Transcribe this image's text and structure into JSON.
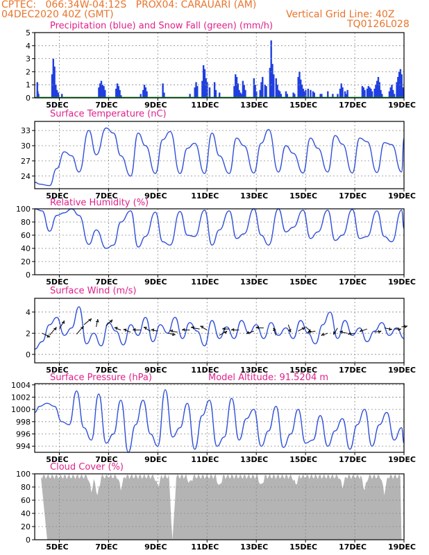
{
  "header": {
    "line1_left": "CPTEC:   066:34W-04:12S   PROX04: CARAUARI (AM)",
    "line2_left": "04DEC2020 40Z (GMT)",
    "line2_right": "Vertical Grid Line: 40Z",
    "line3_right": "TQ0126L028"
  },
  "colors": {
    "header_text": "#e8742c",
    "panel_title": "#e0208a",
    "precip": "#1f3fe0",
    "snow": "#1a9a2a",
    "line": "#3050d8",
    "cloud": "#b4b4b4",
    "grid": "#888888"
  },
  "x_axis": {
    "ticks": [
      "5DEC",
      "7DEC",
      "9DEC",
      "11DEC",
      "13DEC",
      "15DEC",
      "17DEC",
      "19DEC"
    ]
  },
  "chart_data": [
    {
      "id": "precip",
      "type": "bar",
      "title": "Precipitation (blue) and Snow Fall (green) (mm/h)",
      "ylim": [
        0,
        5
      ],
      "yticks": [
        "0",
        "1",
        "2",
        "3",
        "4",
        "5"
      ],
      "x_start_day": 4.0,
      "x_end_day": 19.0,
      "bars": [
        [
          4.1,
          1.2
        ],
        [
          4.12,
          0.5
        ],
        [
          4.15,
          0.3
        ],
        [
          4.7,
          1.8
        ],
        [
          4.75,
          3.0
        ],
        [
          4.8,
          2.4
        ],
        [
          4.85,
          1.0
        ],
        [
          4.9,
          0.6
        ],
        [
          4.95,
          0.4
        ],
        [
          5.1,
          0.3
        ],
        [
          6.6,
          0.8
        ],
        [
          6.65,
          1.1
        ],
        [
          6.7,
          1.3
        ],
        [
          6.75,
          1.0
        ],
        [
          6.8,
          0.9
        ],
        [
          6.85,
          0.6
        ],
        [
          7.3,
          0.7
        ],
        [
          7.35,
          1.1
        ],
        [
          7.4,
          0.9
        ],
        [
          7.45,
          0.6
        ],
        [
          7.5,
          0.2
        ],
        [
          8.3,
          0.3
        ],
        [
          8.4,
          0.6
        ],
        [
          8.45,
          1.0
        ],
        [
          8.5,
          0.8
        ],
        [
          8.55,
          0.5
        ],
        [
          9.2,
          1.1
        ],
        [
          9.25,
          0.4
        ],
        [
          10.3,
          0.3
        ],
        [
          10.5,
          0.8
        ],
        [
          10.55,
          1.2
        ],
        [
          10.6,
          0.9
        ],
        [
          10.8,
          1.3
        ],
        [
          10.85,
          2.5
        ],
        [
          10.9,
          2.2
        ],
        [
          10.95,
          1.5
        ],
        [
          11.0,
          1.2
        ],
        [
          11.1,
          0.8
        ],
        [
          11.3,
          1.2
        ],
        [
          11.35,
          0.6
        ],
        [
          11.5,
          0.4
        ],
        [
          12.1,
          0.9
        ],
        [
          12.15,
          1.8
        ],
        [
          12.2,
          1.6
        ],
        [
          12.25,
          1.1
        ],
        [
          12.3,
          0.6
        ],
        [
          12.35,
          0.4
        ],
        [
          12.4,
          0.3
        ],
        [
          12.45,
          1.3
        ],
        [
          12.5,
          1.0
        ],
        [
          12.55,
          0.6
        ],
        [
          12.9,
          1.5
        ],
        [
          12.95,
          1.0
        ],
        [
          13.0,
          0.5
        ],
        [
          13.15,
          0.6
        ],
        [
          13.2,
          1.2
        ],
        [
          13.25,
          1.6
        ],
        [
          13.35,
          1.0
        ],
        [
          13.4,
          0.9
        ],
        [
          13.55,
          2.3
        ],
        [
          13.6,
          4.4
        ],
        [
          13.65,
          2.6
        ],
        [
          13.7,
          1.8
        ],
        [
          13.8,
          1.5
        ],
        [
          13.85,
          1.0
        ],
        [
          13.9,
          0.6
        ],
        [
          13.95,
          0.5
        ],
        [
          14.0,
          0.3
        ],
        [
          14.2,
          0.5
        ],
        [
          14.25,
          0.3
        ],
        [
          14.5,
          0.4
        ],
        [
          14.55,
          0.3
        ],
        [
          14.7,
          1.6
        ],
        [
          14.75,
          2.0
        ],
        [
          14.8,
          1.4
        ],
        [
          14.85,
          1.0
        ],
        [
          14.9,
          0.7
        ],
        [
          14.95,
          0.5
        ],
        [
          15.0,
          0.6
        ],
        [
          15.1,
          0.7
        ],
        [
          15.2,
          0.6
        ],
        [
          15.3,
          0.5
        ],
        [
          15.35,
          0.4
        ],
        [
          15.6,
          0.3
        ],
        [
          15.65,
          0.3
        ],
        [
          15.9,
          0.5
        ],
        [
          16.1,
          0.3
        ],
        [
          16.3,
          0.3
        ],
        [
          16.4,
          0.7
        ],
        [
          16.45,
          1.1
        ],
        [
          16.5,
          0.8
        ],
        [
          16.6,
          0.5
        ],
        [
          16.65,
          0.3
        ],
        [
          16.7,
          0.6
        ],
        [
          17.3,
          0.9
        ],
        [
          17.35,
          0.8
        ],
        [
          17.4,
          0.6
        ],
        [
          17.5,
          0.7
        ],
        [
          17.55,
          0.9
        ],
        [
          17.6,
          0.8
        ],
        [
          17.65,
          0.7
        ],
        [
          17.7,
          0.5
        ],
        [
          17.8,
          0.7
        ],
        [
          17.85,
          1.0
        ],
        [
          17.9,
          1.3
        ],
        [
          17.95,
          1.6
        ],
        [
          18.0,
          1.2
        ],
        [
          18.05,
          0.6
        ],
        [
          18.1,
          0.3
        ],
        [
          18.4,
          0.5
        ],
        [
          18.45,
          0.8
        ],
        [
          18.5,
          1.0
        ],
        [
          18.55,
          0.6
        ],
        [
          18.6,
          0.3
        ],
        [
          18.7,
          1.2
        ],
        [
          18.75,
          1.6
        ],
        [
          18.8,
          2.0
        ],
        [
          18.85,
          2.2
        ],
        [
          18.9,
          1.8
        ],
        [
          18.95,
          0.8
        ]
      ],
      "snow_line_value": 0.02
    },
    {
      "id": "temperature",
      "type": "line",
      "title": "Surface Temperature (nC)",
      "ylim": [
        21.5,
        34.8
      ],
      "yticks": [
        "24",
        "27",
        "30",
        "33"
      ],
      "ytick_values": [
        24,
        27,
        30,
        33
      ],
      "x": [
        4.0,
        4.2,
        4.6,
        4.9,
        5.2,
        5.5,
        5.8,
        6.2,
        6.5,
        6.9,
        7.2,
        7.5,
        7.9,
        8.2,
        8.5,
        8.9,
        9.2,
        9.5,
        9.9,
        10.2,
        10.5,
        10.9,
        11.2,
        11.5,
        11.9,
        12.2,
        12.5,
        12.9,
        13.2,
        13.5,
        13.9,
        14.2,
        14.5,
        14.9,
        15.2,
        15.5,
        15.9,
        16.2,
        16.5,
        16.9,
        17.2,
        17.5,
        17.9,
        18.2,
        18.5,
        18.9,
        19.0
      ],
      "y": [
        22.8,
        22.4,
        22.1,
        25.5,
        28.8,
        28.0,
        24.8,
        33.0,
        28.2,
        33.5,
        32.5,
        28.0,
        24.0,
        32.5,
        30.0,
        24.5,
        31.2,
        32.8,
        24.5,
        29.5,
        30.5,
        24.5,
        32.5,
        28.0,
        24.5,
        31.5,
        30.0,
        24.6,
        30.5,
        33.2,
        24.8,
        30.0,
        28.5,
        24.6,
        31.5,
        29.5,
        24.8,
        32.0,
        30.3,
        24.6,
        31.5,
        30.8,
        24.7,
        30.6,
        30.2,
        24.8,
        31.5
      ]
    },
    {
      "id": "humidity",
      "type": "line",
      "title": "Relative Humidity (%)",
      "ylim": [
        0,
        100
      ],
      "yticks": [
        "0",
        "20",
        "40",
        "60",
        "80",
        "100"
      ],
      "ytick_values": [
        0,
        20,
        40,
        60,
        80,
        100
      ],
      "x": [
        4.0,
        4.3,
        4.6,
        4.9,
        5.2,
        5.5,
        5.8,
        6.2,
        6.5,
        6.9,
        7.2,
        7.5,
        7.9,
        8.2,
        8.5,
        8.9,
        9.2,
        9.5,
        9.9,
        10.2,
        10.5,
        10.9,
        11.2,
        11.5,
        11.9,
        12.2,
        12.5,
        12.9,
        13.2,
        13.5,
        13.9,
        14.2,
        14.5,
        14.9,
        15.2,
        15.5,
        15.9,
        16.2,
        16.5,
        16.9,
        17.2,
        17.5,
        17.9,
        18.2,
        18.5,
        18.9,
        19.0
      ],
      "y": [
        100,
        97,
        66,
        90,
        94,
        100,
        90,
        46,
        68,
        40,
        45,
        80,
        97,
        42,
        58,
        95,
        50,
        45,
        96,
        60,
        58,
        98,
        45,
        68,
        97,
        55,
        62,
        100,
        60,
        45,
        100,
        65,
        72,
        98,
        55,
        65,
        98,
        52,
        60,
        99,
        55,
        58,
        97,
        58,
        50,
        98,
        70
      ]
    },
    {
      "id": "wind",
      "type": "line",
      "title": "Surface Wind (m/s)",
      "ylim": [
        -0.8,
        5.3
      ],
      "yticks": [
        "0",
        "2",
        "4"
      ],
      "ytick_values": [
        0,
        2,
        4
      ],
      "x": [
        4.0,
        4.3,
        4.6,
        4.9,
        5.2,
        5.5,
        5.8,
        6.1,
        6.4,
        6.7,
        7.0,
        7.3,
        7.6,
        7.9,
        8.2,
        8.5,
        8.8,
        9.1,
        9.4,
        9.7,
        10.0,
        10.3,
        10.6,
        10.9,
        11.2,
        11.5,
        11.8,
        12.1,
        12.4,
        12.7,
        13.0,
        13.3,
        13.6,
        13.9,
        14.2,
        14.5,
        14.8,
        15.1,
        15.4,
        15.7,
        16.0,
        16.3,
        16.6,
        16.9,
        17.2,
        17.5,
        17.8,
        18.1,
        18.4,
        18.7,
        19.0
      ],
      "y": [
        0.5,
        1.2,
        2.8,
        3.5,
        1.8,
        2.5,
        4.5,
        1.0,
        2.0,
        0.8,
        3.0,
        2.2,
        0.9,
        2.8,
        1.8,
        3.5,
        1.2,
        2.8,
        2.0,
        3.5,
        1.5,
        3.0,
        2.2,
        0.8,
        3.2,
        1.5,
        2.6,
        1.5,
        3.2,
        2.0,
        2.8,
        1.5,
        3.0,
        1.8,
        2.5,
        1.5,
        3.2,
        2.0,
        1.0,
        2.8,
        4.0,
        1.5,
        3.2,
        1.8,
        2.5,
        1.2,
        2.2,
        3.0,
        1.8,
        2.5,
        1.5
      ],
      "arrows": [
        [
          4.3,
          2.0,
          -25,
          0.9
        ],
        [
          4.6,
          1.8,
          50,
          1.1
        ],
        [
          5.0,
          2.4,
          60,
          1.0
        ],
        [
          5.7,
          1.9,
          50,
          1.1
        ],
        [
          6.0,
          2.8,
          40,
          1.0
        ],
        [
          6.5,
          2.6,
          80,
          0.8
        ],
        [
          6.9,
          2.7,
          45,
          0.9
        ],
        [
          7.5,
          2.3,
          160,
          0.7
        ],
        [
          7.9,
          2.1,
          160,
          0.8
        ],
        [
          8.3,
          2.3,
          180,
          0.8
        ],
        [
          8.7,
          2.2,
          150,
          0.8
        ],
        [
          9.0,
          2.2,
          170,
          0.7
        ],
        [
          9.4,
          2.0,
          -10,
          0.8
        ],
        [
          9.8,
          2.1,
          170,
          0.8
        ],
        [
          10.3,
          2.3,
          180,
          0.8
        ],
        [
          10.7,
          2.4,
          170,
          0.9
        ],
        [
          11.0,
          2.3,
          150,
          0.8
        ],
        [
          11.5,
          1.8,
          30,
          0.9
        ],
        [
          11.9,
          2.4,
          180,
          0.7
        ],
        [
          12.3,
          2.3,
          180,
          0.8
        ],
        [
          12.9,
          2.2,
          200,
          0.8
        ],
        [
          13.3,
          2.5,
          180,
          0.8
        ],
        [
          13.8,
          1.8,
          110,
          0.8
        ],
        [
          14.3,
          2.8,
          -70,
          0.8
        ],
        [
          14.7,
          2.2,
          30,
          0.8
        ],
        [
          15.0,
          2.6,
          -40,
          0.8
        ],
        [
          15.4,
          2.2,
          190,
          0.8
        ],
        [
          15.9,
          2.0,
          200,
          0.7
        ],
        [
          16.3,
          2.5,
          240,
          0.8
        ],
        [
          16.7,
          2.0,
          170,
          0.8
        ],
        [
          17.0,
          2.0,
          190,
          0.7
        ],
        [
          17.5,
          2.4,
          200,
          0.8
        ],
        [
          17.8,
          2.1,
          10,
          0.7
        ],
        [
          18.2,
          2.5,
          -10,
          0.8
        ],
        [
          18.6,
          2.4,
          0,
          0.7
        ],
        [
          18.9,
          2.6,
          10,
          0.6
        ]
      ]
    },
    {
      "id": "pressure",
      "type": "line",
      "title": "Surface Pressure (hPa)",
      "subtitle": "Model Altitude: 91.5204 m",
      "ylim": [
        993,
        1004.2
      ],
      "yticks": [
        "994",
        "996",
        "998",
        "1000",
        "1002",
        "1004"
      ],
      "ytick_values": [
        994,
        996,
        998,
        1000,
        1002,
        1004
      ],
      "x": [
        4.0,
        4.2,
        4.5,
        4.8,
        5.1,
        5.4,
        5.7,
        6.0,
        6.3,
        6.6,
        6.9,
        7.2,
        7.5,
        7.8,
        8.1,
        8.4,
        8.7,
        9.0,
        9.3,
        9.6,
        9.9,
        10.2,
        10.5,
        10.8,
        11.1,
        11.4,
        11.7,
        12.0,
        12.3,
        12.6,
        12.9,
        13.2,
        13.5,
        13.8,
        14.1,
        14.4,
        14.7,
        15.0,
        15.3,
        15.6,
        15.9,
        16.2,
        16.5,
        16.8,
        17.1,
        17.4,
        17.7,
        18.0,
        18.3,
        18.6,
        18.9,
        19.0
      ],
      "y": [
        999.5,
        1000.5,
        1001.0,
        1000.5,
        998.0,
        997.5,
        1003.0,
        997.0,
        995.0,
        1002.5,
        994.5,
        996.0,
        1001.5,
        993.0,
        997.5,
        1001.5,
        996.0,
        994.0,
        1003.2,
        995.5,
        997.0,
        1001.0,
        993.5,
        999.0,
        1001.5,
        994.0,
        995.5,
        1001.8,
        995.0,
        998.5,
        1000.0,
        994.0,
        996.5,
        1000.5,
        993.8,
        996.0,
        1000.0,
        994.5,
        995.0,
        999.0,
        994.0,
        996.5,
        998.5,
        993.5,
        997.5,
        1000.0,
        994.0,
        997.5,
        999.5,
        995.0,
        997.0,
        994.5
      ]
    },
    {
      "id": "cloud",
      "type": "area",
      "title": "Cloud Cover (%)",
      "ylim": [
        0,
        100
      ],
      "yticks": [
        "0",
        "20",
        "40",
        "60",
        "80",
        "100"
      ],
      "ytick_values": [
        0,
        20,
        40,
        60,
        80,
        100
      ],
      "dips": [
        [
          6.3,
          78
        ],
        [
          6.55,
          70
        ],
        [
          7.5,
          82
        ],
        [
          9.0,
          85
        ],
        [
          9.6,
          0
        ],
        [
          10.3,
          90
        ],
        [
          11.5,
          84
        ],
        [
          13.2,
          85
        ],
        [
          14.6,
          88
        ],
        [
          16.5,
          85
        ],
        [
          17.4,
          80
        ],
        [
          18.2,
          75
        ]
      ]
    }
  ]
}
